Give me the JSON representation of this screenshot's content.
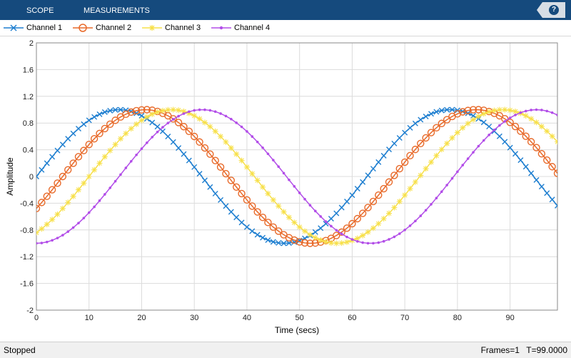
{
  "toolbar": {
    "tab_scope": "SCOPE",
    "tab_measurements": "MEASUREMENTS",
    "help": "?"
  },
  "legend": [
    {
      "name": "Channel 1",
      "color": "#1f7fd0",
      "marker": "x"
    },
    {
      "name": "Channel 2",
      "color": "#e86a2a",
      "marker": "circle"
    },
    {
      "name": "Channel 3",
      "color": "#f7e04a",
      "marker": "star"
    },
    {
      "name": "Channel 4",
      "color": "#b24de8",
      "marker": "dot"
    }
  ],
  "status": {
    "state": "Stopped",
    "frames": "Frames=1",
    "time": "T=99.0000"
  },
  "chart_data": {
    "type": "line",
    "xlabel": "Time (secs)",
    "ylabel": "Amplitude",
    "xlim": [
      0,
      99
    ],
    "ylim": [
      -2,
      2
    ],
    "xticks": [
      "0",
      "10",
      "20",
      "30",
      "40",
      "50",
      "60",
      "70",
      "80",
      "90"
    ],
    "yticks": [
      "2",
      "1.6",
      "1.2",
      "0.8",
      "0.4",
      "0",
      "-0.4",
      "-0.8",
      "-1.2",
      "-1.6",
      "-2"
    ],
    "grid": true,
    "legend_position": "top",
    "x": [
      0,
      1,
      2,
      3,
      4,
      5,
      6,
      7,
      8,
      9,
      10,
      11,
      12,
      13,
      14,
      15,
      16,
      17,
      18,
      19,
      20,
      21,
      22,
      23,
      24,
      25,
      26,
      27,
      28,
      29,
      30,
      31,
      32,
      33,
      34,
      35,
      36,
      37,
      38,
      39,
      40,
      41,
      42,
      43,
      44,
      45,
      46,
      47,
      48,
      49,
      50,
      51,
      52,
      53,
      54,
      55,
      56,
      57,
      58,
      59,
      60,
      61,
      62,
      63,
      64,
      65,
      66,
      67,
      68,
      69,
      70,
      71,
      72,
      73,
      74,
      75,
      76,
      77,
      78,
      79,
      80,
      81,
      82,
      83,
      84,
      85,
      86,
      87,
      88,
      89,
      90,
      91,
      92,
      93,
      94,
      95,
      96,
      97,
      98,
      99
    ],
    "series": [
      {
        "name": "Channel 1",
        "values": [
          0,
          0.099,
          0.199,
          0.296,
          0.389,
          0.479,
          0.565,
          0.644,
          0.717,
          0.783,
          0.841,
          0.891,
          0.932,
          0.964,
          0.985,
          0.997,
          1.0,
          0.992,
          0.974,
          0.946,
          0.909,
          0.863,
          0.808,
          0.746,
          0.676,
          0.599,
          0.516,
          0.427,
          0.335,
          0.239,
          0.141,
          0.042,
          -0.058,
          -0.158,
          -0.256,
          -0.351,
          -0.443,
          -0.53,
          -0.612,
          -0.688,
          -0.757,
          -0.818,
          -0.872,
          -0.916,
          -0.952,
          -0.978,
          -0.994,
          -1.0,
          -0.996,
          -0.982,
          -0.959,
          -0.926,
          -0.883,
          -0.832,
          -0.773,
          -0.706,
          -0.631,
          -0.551,
          -0.465,
          -0.374,
          -0.279,
          -0.182,
          -0.083,
          0.017,
          0.117,
          0.215,
          0.312,
          0.405,
          0.494,
          0.578,
          0.657,
          0.729,
          0.794,
          0.85,
          0.899,
          0.938,
          0.968,
          0.988,
          0.999,
          1.0,
          0.991,
          0.973,
          0.946,
          0.909,
          0.864,
          0.81,
          0.748,
          0.678,
          0.602,
          0.52,
          0.432,
          0.34,
          0.245,
          0.147,
          0.048,
          -0.052,
          -0.151,
          -0.249,
          -0.345,
          -0.437
        ]
      },
      {
        "name": "Channel 2",
        "values": [
          -0.479,
          -0.389,
          -0.296,
          -0.199,
          -0.1,
          0,
          0.1,
          0.199,
          0.296,
          0.389,
          0.479,
          0.565,
          0.644,
          0.717,
          0.783,
          0.841,
          0.891,
          0.932,
          0.964,
          0.985,
          0.997,
          1.0,
          0.992,
          0.974,
          0.946,
          0.909,
          0.863,
          0.808,
          0.746,
          0.676,
          0.599,
          0.516,
          0.427,
          0.335,
          0.239,
          0.141,
          0.042,
          -0.058,
          -0.158,
          -0.256,
          -0.351,
          -0.443,
          -0.53,
          -0.612,
          -0.688,
          -0.757,
          -0.818,
          -0.872,
          -0.916,
          -0.952,
          -0.978,
          -0.994,
          -1.0,
          -0.996,
          -0.982,
          -0.959,
          -0.926,
          -0.883,
          -0.832,
          -0.773,
          -0.706,
          -0.631,
          -0.551,
          -0.465,
          -0.374,
          -0.279,
          -0.182,
          -0.083,
          0.017,
          0.117,
          0.215,
          0.312,
          0.405,
          0.494,
          0.578,
          0.657,
          0.729,
          0.794,
          0.85,
          0.899,
          0.938,
          0.968,
          0.988,
          0.999,
          1.0,
          0.991,
          0.973,
          0.946,
          0.909,
          0.864,
          0.81,
          0.748,
          0.678,
          0.602,
          0.52,
          0.432,
          0.34,
          0.245,
          0.147,
          0.048
        ]
      },
      {
        "name": "Channel 3",
        "values": [
          -0.841,
          -0.783,
          -0.717,
          -0.644,
          -0.565,
          -0.479,
          -0.389,
          -0.296,
          -0.199,
          -0.1,
          0,
          0.1,
          0.199,
          0.296,
          0.389,
          0.479,
          0.565,
          0.644,
          0.717,
          0.783,
          0.841,
          0.891,
          0.932,
          0.964,
          0.985,
          0.997,
          1.0,
          0.992,
          0.974,
          0.946,
          0.909,
          0.863,
          0.808,
          0.746,
          0.676,
          0.599,
          0.516,
          0.427,
          0.335,
          0.239,
          0.141,
          0.042,
          -0.058,
          -0.158,
          -0.256,
          -0.351,
          -0.443,
          -0.53,
          -0.612,
          -0.688,
          -0.757,
          -0.818,
          -0.872,
          -0.916,
          -0.952,
          -0.978,
          -0.994,
          -1.0,
          -0.996,
          -0.982,
          -0.959,
          -0.926,
          -0.883,
          -0.832,
          -0.773,
          -0.706,
          -0.631,
          -0.551,
          -0.465,
          -0.374,
          -0.279,
          -0.182,
          -0.083,
          0.017,
          0.117,
          0.215,
          0.312,
          0.405,
          0.494,
          0.578,
          0.657,
          0.729,
          0.794,
          0.85,
          0.899,
          0.938,
          0.968,
          0.988,
          0.999,
          1.0,
          0.991,
          0.973,
          0.946,
          0.909,
          0.864,
          0.81,
          0.748,
          0.678,
          0.602,
          0.52
        ]
      },
      {
        "name": "Channel 4",
        "values": [
          -1.0,
          -0.995,
          -0.98,
          -0.955,
          -0.921,
          -0.878,
          -0.825,
          -0.765,
          -0.697,
          -0.622,
          -0.54,
          -0.454,
          -0.362,
          -0.267,
          -0.17,
          -0.071,
          0.029,
          0.129,
          0.227,
          0.323,
          0.416,
          0.505,
          0.589,
          0.666,
          0.737,
          0.8,
          0.856,
          0.903,
          0.941,
          0.97,
          0.99,
          0.999,
          0.999,
          0.99,
          0.971,
          0.942,
          0.905,
          0.859,
          0.804,
          0.743,
          0.674,
          0.598,
          0.517,
          0.43,
          0.339,
          0.245,
          0.148,
          0.05,
          -0.05,
          -0.148,
          -0.245,
          -0.339,
          -0.43,
          -0.517,
          -0.598,
          -0.674,
          -0.743,
          -0.804,
          -0.859,
          -0.905,
          -0.942,
          -0.971,
          -0.99,
          -0.999,
          -0.999,
          -0.99,
          -0.97,
          -0.941,
          -0.903,
          -0.856,
          -0.8,
          -0.737,
          -0.666,
          -0.589,
          -0.505,
          -0.416,
          -0.323,
          -0.227,
          -0.129,
          -0.029,
          0.071,
          0.17,
          0.267,
          0.362,
          0.454,
          0.54,
          0.622,
          0.697,
          0.765,
          0.825,
          0.878,
          0.921,
          0.955,
          0.98,
          0.995,
          1.0,
          0.995,
          0.98,
          0.955,
          0.921
        ]
      }
    ]
  }
}
